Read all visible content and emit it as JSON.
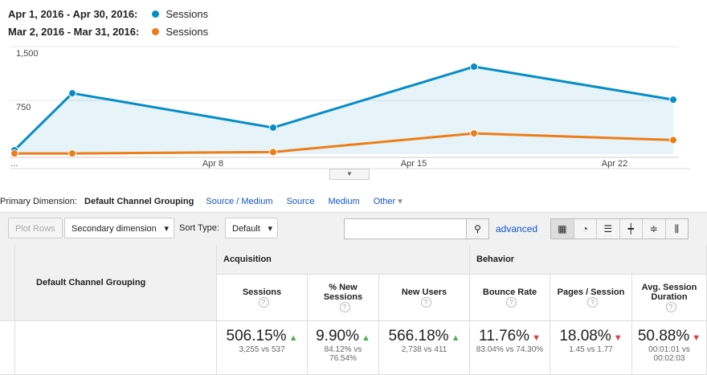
{
  "legend": [
    {
      "range": "Apr 1, 2016 - Apr 30, 2016:",
      "name": "Sessions",
      "color": "#058dc7"
    },
    {
      "range": "Mar 2, 2016 - Mar 31, 2016:",
      "name": "Sessions",
      "color": "#ed7e17"
    }
  ],
  "chart_data": {
    "type": "line",
    "x_labels": [
      "...",
      "Apr 8",
      "Apr 15",
      "Apr 22"
    ],
    "series": [
      {
        "name": "Sessions",
        "color": "#058dc7",
        "values": [
          55,
          850,
          370,
          1220,
          760
        ]
      },
      {
        "name": "Sessions",
        "color": "#ed7e17",
        "values": [
          10,
          10,
          30,
          290,
          197
        ]
      }
    ],
    "ylim": [
      0,
      1500
    ],
    "yticks": [
      {
        "value": 1500,
        "label": "1,500"
      },
      750
    ],
    "area": true
  },
  "dimension_bar": {
    "label": "Primary Dimension:",
    "active": "Default Channel Grouping",
    "links": [
      "Source / Medium",
      "Source",
      "Medium",
      "Other"
    ]
  },
  "toolbar": {
    "plot_rows": "Plot Rows",
    "secondary": "Secondary dimension",
    "sort_label": "Sort Type:",
    "sort_value": "Default",
    "advanced": "advanced"
  },
  "table": {
    "groups": [
      "Acquisition",
      "Behavior"
    ],
    "dimension": "Default Channel Grouping",
    "columns": [
      "Sessions",
      "% New Sessions",
      "New Users",
      "Bounce Rate",
      "Pages / Session",
      "Avg. Session Duration"
    ],
    "row": [
      {
        "change": "506.15%",
        "compare": "3,255 vs 537"
      },
      {
        "change": "9.90%",
        "compare": "84.12% vs 76.54%"
      },
      {
        "change": "566.18%",
        "compare": "2,738 vs 411"
      },
      {
        "change": "11.76%",
        "compare": "83.04% vs 74.30%"
      },
      {
        "change": "18.08%",
        "compare": "1.45 vs 1.77"
      },
      {
        "change": "50.88%",
        "compare": "00:01:01 vs 00:02:03"
      }
    ]
  }
}
